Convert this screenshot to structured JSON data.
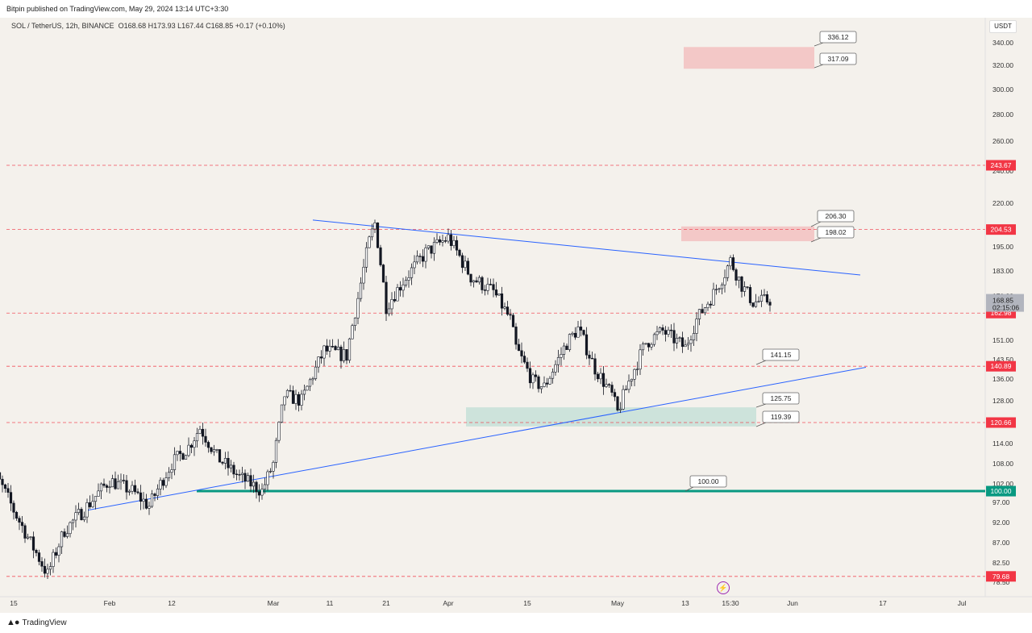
{
  "header": {
    "publisher": "Bitpin published on TradingView.com, May 29, 2024 13:14 UTC+3:30",
    "symbol": "SOL / TetherUS, 12h, BINANCE",
    "ohlc": "O168.68 H173.93 L167.44 C168.85 +0.17 (+0.10%)"
  },
  "currency": "USDT",
  "footer": {
    "logo_text": "TradingView"
  },
  "colors": {
    "background": "#f4f1ec",
    "candle": "#131722",
    "trendline": "#2962ff",
    "support": "#089981",
    "level": "#f23645"
  },
  "chart_data": {
    "type": "candlestick",
    "ylim": [
      78.5,
      350
    ],
    "y_ticks": [
      "340.00",
      "320.00",
      "300.00",
      "280.00",
      "260.00",
      "240.00",
      "220.00",
      "195.00",
      "183.00",
      "171.00",
      "151.00",
      "143.50",
      "136.00",
      "128.00",
      "114.00",
      "108.00",
      "102.00",
      "97.00",
      "92.00",
      "87.00",
      "82.50",
      "78.50"
    ],
    "x_ticks": [
      "15",
      "Feb",
      "12",
      "Mar",
      "11",
      "21",
      "Apr",
      "15",
      "May",
      "13",
      "15:30",
      "Jun",
      "17",
      "Jul",
      "15"
    ],
    "last_price": "168.85",
    "countdown": "02:15:06",
    "levels": [
      "243.67",
      "204.53",
      "162.98",
      "140.89",
      "120.66",
      "79.68"
    ],
    "support_level": "100.00",
    "annotations": [
      "336.12",
      "317.09",
      "206.30",
      "198.02",
      "141.15",
      "125.75",
      "119.39",
      "100.00"
    ],
    "zones": [
      {
        "type": "resistance",
        "from": 317.09,
        "to": 336.12
      },
      {
        "type": "resistance",
        "from": 198.02,
        "to": 206.3
      },
      {
        "type": "support",
        "from": 119.39,
        "to": 125.75
      }
    ],
    "trendlines": [
      {
        "name": "upper",
        "from": {
          "date": "2024-03-08",
          "price": 210
        },
        "to": {
          "date": "2024-06-13",
          "price": 181
        }
      },
      {
        "name": "lower",
        "from": {
          "date": "2024-01-28",
          "price": 95
        },
        "to": {
          "date": "2024-06-14",
          "price": 140.5
        }
      }
    ],
    "path": [
      {
        "date": "2024-01-10",
        "price": 97
      },
      {
        "date": "2024-01-12",
        "price": 104
      },
      {
        "date": "2024-01-15",
        "price": 95
      },
      {
        "date": "2024-01-18",
        "price": 87
      },
      {
        "date": "2024-01-21",
        "price": 80
      },
      {
        "date": "2024-01-24",
        "price": 90
      },
      {
        "date": "2024-01-28",
        "price": 96
      },
      {
        "date": "2024-02-01",
        "price": 103
      },
      {
        "date": "2024-02-05",
        "price": 100
      },
      {
        "date": "2024-02-08",
        "price": 96
      },
      {
        "date": "2024-02-12",
        "price": 108
      },
      {
        "date": "2024-02-15",
        "price": 113
      },
      {
        "date": "2024-02-17",
        "price": 119
      },
      {
        "date": "2024-02-20",
        "price": 110
      },
      {
        "date": "2024-02-24",
        "price": 104
      },
      {
        "date": "2024-02-28",
        "price": 100
      },
      {
        "date": "2024-03-01",
        "price": 108
      },
      {
        "date": "2024-03-03",
        "price": 130
      },
      {
        "date": "2024-03-06",
        "price": 128
      },
      {
        "date": "2024-03-10",
        "price": 147
      },
      {
        "date": "2024-03-14",
        "price": 145
      },
      {
        "date": "2024-03-16",
        "price": 170
      },
      {
        "date": "2024-03-18",
        "price": 198
      },
      {
        "date": "2024-03-19",
        "price": 208
      },
      {
        "date": "2024-03-21",
        "price": 166
      },
      {
        "date": "2024-03-24",
        "price": 178
      },
      {
        "date": "2024-03-28",
        "price": 192
      },
      {
        "date": "2024-04-01",
        "price": 200
      },
      {
        "date": "2024-04-05",
        "price": 180
      },
      {
        "date": "2024-04-09",
        "price": 173
      },
      {
        "date": "2024-04-12",
        "price": 160
      },
      {
        "date": "2024-04-13",
        "price": 148
      },
      {
        "date": "2024-04-16",
        "price": 135
      },
      {
        "date": "2024-04-18",
        "price": 133
      },
      {
        "date": "2024-04-22",
        "price": 150
      },
      {
        "date": "2024-04-24",
        "price": 156
      },
      {
        "date": "2024-04-27",
        "price": 140
      },
      {
        "date": "2024-04-30",
        "price": 130
      },
      {
        "date": "2024-05-01",
        "price": 124
      },
      {
        "date": "2024-05-03",
        "price": 135
      },
      {
        "date": "2024-05-06",
        "price": 150
      },
      {
        "date": "2024-05-09",
        "price": 155
      },
      {
        "date": "2024-05-13",
        "price": 148
      },
      {
        "date": "2024-05-15",
        "price": 160
      },
      {
        "date": "2024-05-18",
        "price": 172
      },
      {
        "date": "2024-05-20",
        "price": 182
      },
      {
        "date": "2024-05-21",
        "price": 188
      },
      {
        "date": "2024-05-23",
        "price": 176
      },
      {
        "date": "2024-05-25",
        "price": 168
      },
      {
        "date": "2024-05-28",
        "price": 169
      }
    ]
  }
}
